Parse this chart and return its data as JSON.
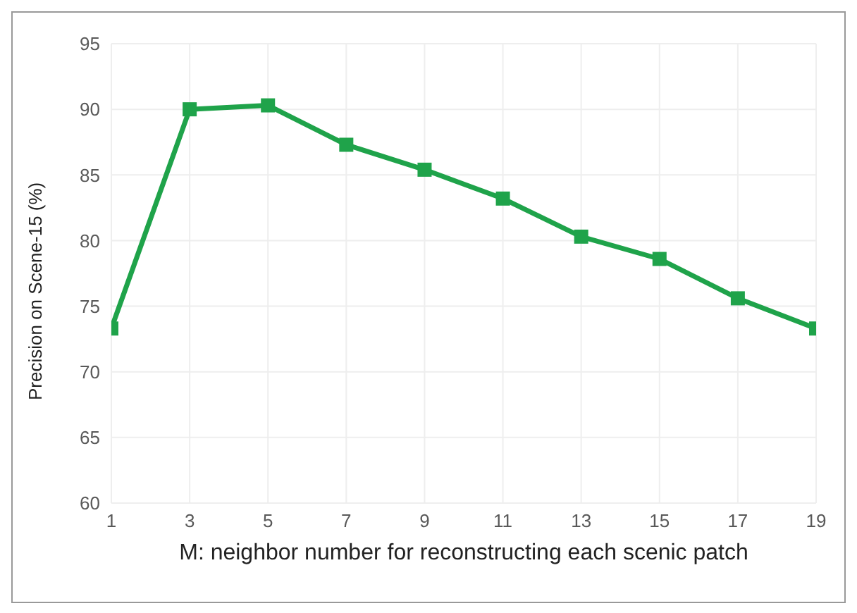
{
  "chart_data": {
    "type": "line",
    "xlabel": "M: neighbor number for reconstructing each scenic patch",
    "ylabel": "Precision on Scene-15 (%)",
    "x": [
      1,
      3,
      5,
      7,
      9,
      11,
      13,
      15,
      17,
      19
    ],
    "series": [
      {
        "color": "#1fa34a",
        "values": [
          73.3,
          90.0,
          90.3,
          87.3,
          85.4,
          83.2,
          80.3,
          78.6,
          75.6,
          73.3
        ]
      }
    ],
    "xlim": [
      1,
      19
    ],
    "xticks": [
      1,
      3,
      5,
      7,
      9,
      11,
      13,
      15,
      17,
      19
    ],
    "ylim": [
      60,
      95
    ],
    "yticks": [
      60,
      65,
      70,
      75,
      80,
      85,
      90,
      95
    ],
    "grid": true,
    "marker": "square",
    "line_style": "solid"
  }
}
